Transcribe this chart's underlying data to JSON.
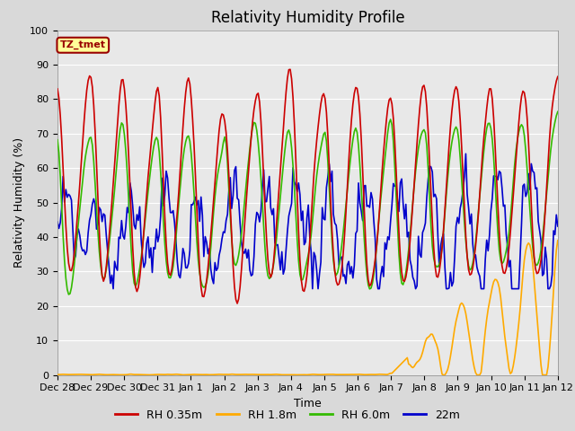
{
  "title": "Relativity Humidity Profile",
  "xlabel": "Time",
  "ylabel": "Relativity Humidity (%)",
  "ylim": [
    0,
    100
  ],
  "yticks": [
    0,
    10,
    20,
    30,
    40,
    50,
    60,
    70,
    80,
    90,
    100
  ],
  "xtick_labels": [
    "Dec 28",
    "Dec 29",
    "Dec 30",
    "Dec 31",
    "Jan 1",
    "Jan 2",
    "Jan 3",
    "Jan 4",
    "Jan 5",
    "Jan 6",
    "Jan 7",
    "Jan 8",
    "Jan 9",
    "Jan 10",
    "Jan 11",
    "Jan 12"
  ],
  "line_colors": [
    "#cc0000",
    "#ffaa00",
    "#33bb00",
    "#0000cc"
  ],
  "line_labels": [
    "RH 0.35m",
    "RH 1.8m",
    "RH 6.0m",
    "22m"
  ],
  "bg_color": "#d9d9d9",
  "plot_bg_color": "#e8e8e8",
  "grid_color": "#ffffff",
  "label_box_color": "#ffff99",
  "label_box_edge_color": "#990000",
  "label_text": "TZ_tmet",
  "label_text_color": "#990000",
  "title_fontsize": 12,
  "axis_fontsize": 9,
  "tick_fontsize": 8
}
